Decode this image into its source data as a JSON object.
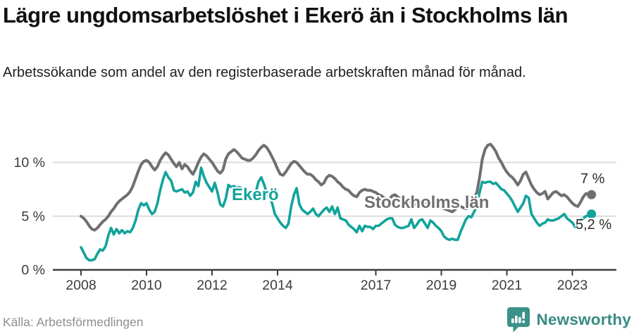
{
  "header": {
    "title": "Lägre ungdomsarbetslöshet i Ekerö än i Stockholms län",
    "subtitle": "Arbetssökande som andel av den registerbaserade arbetskraften månad för månad."
  },
  "footer": {
    "source": "Källa: Arbetsförmedlingen",
    "brand": "Newsworthy"
  },
  "colors": {
    "accent_teal": "#12a39b",
    "neutral_gray": "#6f6f73",
    "grid": "#dcdcdc",
    "axis": "#3c3c3c",
    "tick_text": "#3c3c3c",
    "title_text": "#111111",
    "source_text": "#8f8f8f",
    "brand_teal": "#3a8a84",
    "logo_fill": "#3b9289"
  },
  "chart_data": {
    "type": "line",
    "title": "Lägre ungdomsarbetslöshet i Ekerö än i Stockholms län",
    "subtitle": "Arbetssökande som andel av den registerbaserade arbetskraften månad för månad.",
    "x_unit": "month",
    "x_start": "2008-01",
    "x_end": "2023-08",
    "grid": "horizontal",
    "legend_position": "inline-labels",
    "ylim": [
      0,
      12.5
    ],
    "y_ticks": [
      {
        "value": 0,
        "label": "0 %"
      },
      {
        "value": 5,
        "label": "5 %"
      },
      {
        "value": 10,
        "label": "10 %"
      }
    ],
    "x_tick_years": [
      2008,
      2010,
      2012,
      2014,
      2017,
      2019,
      2021,
      2023
    ],
    "series": [
      {
        "name": "Stockholms län",
        "color": "#6f6f73",
        "width": 4,
        "end_label": "7 %",
        "values": [
          5.0,
          4.8,
          4.5,
          4.1,
          3.8,
          3.7,
          3.9,
          4.2,
          4.5,
          4.7,
          5.0,
          5.4,
          5.7,
          6.1,
          6.4,
          6.6,
          6.8,
          7.0,
          7.3,
          7.8,
          8.5,
          9.2,
          9.8,
          10.1,
          10.2,
          10.0,
          9.6,
          9.3,
          9.6,
          10.2,
          10.6,
          10.9,
          10.7,
          10.3,
          9.9,
          9.6,
          10.0,
          9.4,
          9.8,
          9.6,
          9.2,
          8.9,
          9.4,
          10.0,
          10.5,
          10.8,
          10.6,
          10.3,
          10.0,
          9.6,
          9.2,
          9.0,
          9.3,
          10.3,
          10.8,
          11.0,
          11.2,
          11.0,
          10.7,
          10.4,
          10.3,
          10.2,
          10.2,
          10.4,
          10.7,
          11.1,
          11.4,
          11.6,
          11.4,
          11.0,
          10.5,
          10.0,
          9.4,
          8.9,
          8.8,
          9.1,
          9.5,
          9.9,
          10.1,
          10.0,
          9.7,
          9.4,
          9.1,
          8.9,
          8.9,
          8.7,
          8.4,
          8.2,
          7.9,
          8.1,
          8.6,
          8.8,
          8.7,
          8.5,
          8.2,
          8.0,
          7.7,
          7.5,
          7.4,
          7.1,
          6.9,
          6.8,
          7.2,
          7.4,
          7.5,
          7.4,
          7.4,
          7.3,
          7.2,
          7.0,
          6.9,
          6.7,
          6.5,
          6.6,
          6.9,
          7.0,
          6.8,
          6.6,
          6.5,
          6.4,
          6.4,
          6.3,
          6.2,
          6.0,
          5.9,
          6.0,
          6.2,
          6.2,
          6.0,
          5.9,
          5.8,
          5.8,
          5.8,
          5.7,
          5.6,
          5.5,
          5.4,
          5.6,
          5.9,
          5.9,
          5.8,
          5.7,
          5.8,
          6.1,
          6.7,
          7.2,
          8.6,
          10.3,
          11.2,
          11.6,
          11.7,
          11.4,
          11.0,
          10.4,
          10.0,
          9.5,
          9.1,
          8.8,
          8.6,
          8.3,
          7.9,
          8.3,
          8.9,
          9.1,
          8.5,
          7.9,
          7.5,
          7.2,
          7.0,
          7.1,
          7.3,
          6.6,
          6.9,
          7.2,
          7.3,
          7.1,
          6.9,
          7.0,
          6.8,
          6.5,
          6.2,
          6.0,
          5.9,
          6.3,
          6.8,
          7.1,
          7.0,
          7.0
        ]
      },
      {
        "name": "Ekerö",
        "color": "#12a39b",
        "width": 3.6,
        "end_label": "5,2 %",
        "values": [
          2.1,
          1.6,
          1.1,
          0.9,
          0.9,
          1.0,
          1.5,
          1.9,
          1.8,
          2.2,
          3.2,
          3.9,
          3.3,
          3.8,
          3.4,
          3.7,
          3.4,
          3.6,
          3.5,
          3.9,
          4.6,
          5.6,
          6.2,
          6.0,
          6.2,
          5.6,
          5.2,
          5.4,
          6.2,
          7.4,
          8.4,
          9.1,
          8.6,
          8.3,
          7.4,
          7.3,
          7.4,
          7.5,
          7.2,
          7.3,
          6.9,
          7.2,
          8.2,
          7.8,
          9.5,
          8.7,
          8.1,
          7.7,
          7.3,
          8.1,
          7.2,
          6.1,
          5.9,
          6.6,
          7.9,
          7.7,
          7.8,
          7.6,
          7.7,
          7.6,
          7.1,
          7.0,
          6.9,
          7.0,
          7.2,
          8.2,
          8.6,
          8.0,
          7.2,
          6.8,
          6.2,
          5.2,
          4.8,
          4.4,
          4.1,
          3.9,
          4.3,
          5.9,
          7.0,
          7.6,
          6.1,
          5.6,
          5.4,
          5.2,
          5.4,
          5.7,
          5.2,
          5.0,
          5.3,
          5.6,
          5.8,
          5.4,
          5.9,
          5.2,
          5.8,
          4.8,
          4.7,
          4.6,
          4.2,
          4.0,
          3.8,
          3.5,
          4.1,
          3.6,
          4.1,
          4.0,
          4.0,
          3.8,
          4.1,
          4.1,
          4.3,
          4.5,
          4.7,
          4.8,
          4.8,
          4.2,
          4.0,
          3.9,
          3.9,
          4.0,
          4.1,
          4.7,
          3.9,
          4.2,
          4.6,
          4.7,
          4.3,
          3.9,
          4.6,
          4.4,
          4.1,
          3.9,
          3.6,
          3.1,
          2.9,
          2.8,
          2.9,
          2.8,
          2.8,
          3.5,
          4.1,
          4.7,
          5.0,
          4.9,
          5.4,
          5.9,
          7.2,
          8.2,
          8.1,
          8.2,
          8.2,
          8.0,
          8.1,
          7.8,
          7.5,
          7.4,
          7.1,
          6.8,
          6.4,
          5.9,
          5.4,
          5.8,
          6.2,
          6.9,
          6.7,
          5.2,
          4.8,
          4.4,
          4.1,
          4.3,
          4.4,
          4.7,
          4.6,
          4.6,
          4.7,
          4.8,
          5.0,
          5.2,
          4.8,
          4.6,
          4.4,
          4.0,
          4.3,
          4.6,
          4.8,
          5.0,
          5.1,
          5.2
        ]
      }
    ]
  }
}
